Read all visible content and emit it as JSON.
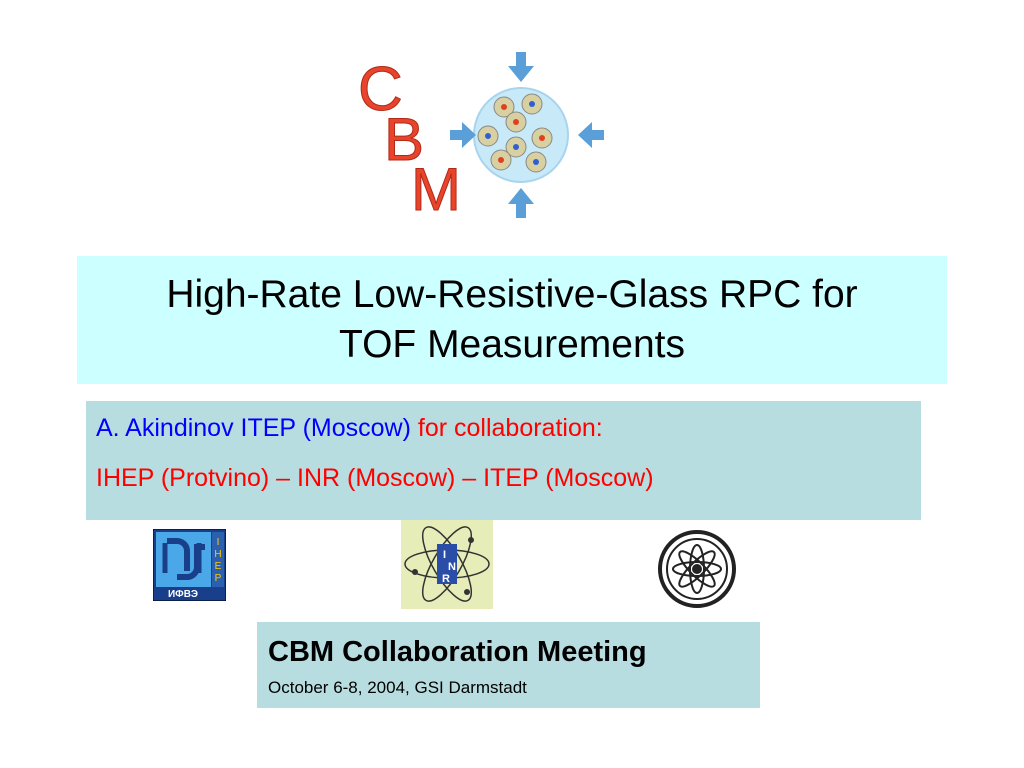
{
  "logo": {
    "text": "CBM",
    "letters": [
      "C",
      "B",
      "M"
    ]
  },
  "title": {
    "line1": "High-Rate Low-Resistive-Glass RPC for",
    "line2": "TOF Measurements"
  },
  "author": {
    "name": "A. Akindinov ITEP (Moscow)",
    "suffix": " for collaboration:",
    "institutes": "IHEP (Protvino) – INR (Moscow) – ITEP (Moscow)"
  },
  "partner_logos": [
    {
      "name": "IHEP",
      "text": "ИФВЭ",
      "vertical": "IHEP"
    },
    {
      "name": "INR",
      "letters": [
        "I",
        "N",
        "R"
      ]
    },
    {
      "name": "ITEP"
    }
  ],
  "meeting": {
    "title": "CBM Collaboration Meeting",
    "subtitle": "October 6-8, 2004, GSI Darmstadt"
  },
  "colors": {
    "title_bg": "#ccffff",
    "box_bg": "#b8dde0",
    "blue": "#0000ff",
    "red": "#ff0000",
    "logo_red": "#e8442c",
    "logo_blue": "#5a9fd8"
  }
}
